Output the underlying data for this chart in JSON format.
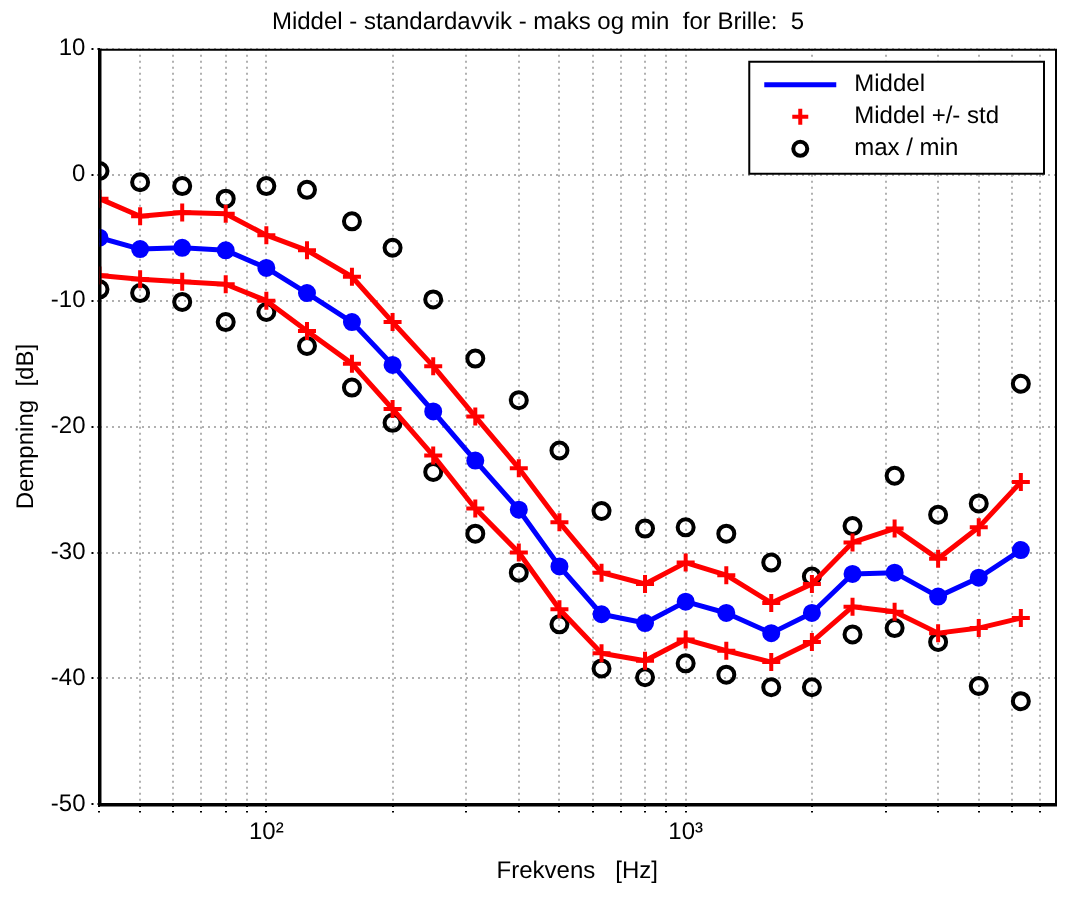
{
  "chart_data": {
    "type": "line",
    "title": "Middel - standardavvik - maks og min  for Brille:  5",
    "xlabel": "Frekvens   [Hz]",
    "ylabel": "Dempning  [dB]",
    "x": [
      40,
      50,
      63,
      80,
      100,
      125,
      160,
      200,
      250,
      315,
      400,
      500,
      630,
      800,
      1000,
      1250,
      1600,
      2000,
      2500,
      3150,
      4000,
      5000,
      6300
    ],
    "series": [
      {
        "name": "Middel",
        "color": "#0000ff",
        "marker": "circle",
        "values": [
          -5.0,
          -5.9,
          -5.8,
          -6.0,
          -7.4,
          -9.4,
          -11.7,
          -15.1,
          -18.8,
          -22.7,
          -26.6,
          -31.1,
          -34.9,
          -35.6,
          -33.9,
          -34.8,
          -36.4,
          -34.8,
          -31.7,
          -31.6,
          -33.5,
          -32.0,
          -29.8
        ]
      },
      {
        "name": "Middel +/- std",
        "color": "#ff0000",
        "marker": "cross",
        "values": [
          -1.9,
          -3.3,
          -3.0,
          -3.1,
          -4.8,
          -6.0,
          -8.1,
          -11.7,
          -15.2,
          -19.2,
          -23.3,
          -27.6,
          -31.6,
          -32.5,
          -30.8,
          -31.8,
          -34.0,
          -32.5,
          -29.2,
          -28.1,
          -30.5,
          -28.0,
          -24.4
        ]
      },
      {
        "color": "#ff0000",
        "marker": "cross",
        "values": [
          -8.0,
          -8.3,
          -8.5,
          -8.7,
          -10.0,
          -12.4,
          -15.0,
          -18.6,
          -22.3,
          -26.5,
          -30.0,
          -34.5,
          -38.0,
          -38.6,
          -36.9,
          -37.8,
          -38.7,
          -37.1,
          -34.3,
          -34.7,
          -36.4,
          -36.0,
          -35.2
        ]
      },
      {
        "name": "max / min",
        "type": "scatter",
        "color": "#000000",
        "marker": "circle",
        "values": [
          0.3,
          -0.6,
          -0.9,
          -1.9,
          -0.9,
          -1.2,
          -3.7,
          -5.8,
          -9.9,
          -14.6,
          -17.9,
          -21.9,
          -26.7,
          -28.1,
          -28.0,
          -28.5,
          -30.8,
          -31.9,
          -27.9,
          -23.9,
          -27.0,
          -26.1,
          -16.6
        ]
      },
      {
        "type": "scatter",
        "color": "#000000",
        "marker": "circle",
        "values": [
          -9.1,
          -9.4,
          -10.1,
          -11.7,
          -10.9,
          -13.6,
          -16.9,
          -19.7,
          -23.6,
          -28.5,
          -31.6,
          -35.7,
          -39.2,
          -39.9,
          -38.8,
          -39.7,
          -40.7,
          -40.7,
          -36.5,
          -36.0,
          -37.1,
          -40.6,
          -41.8
        ]
      }
    ],
    "log": "x",
    "xlim": [
      40,
      7600
    ],
    "xticks": [
      {
        "value": 40,
        "label": null
      },
      {
        "value": 50,
        "label": null
      },
      {
        "value": 60,
        "label": null
      },
      {
        "value": 70,
        "label": null
      },
      {
        "value": 80,
        "label": null
      },
      {
        "value": 90,
        "label": null
      },
      {
        "value": 100,
        "label": "10²"
      },
      {
        "value": 200,
        "label": null
      },
      {
        "value": 300,
        "label": null
      },
      {
        "value": 400,
        "label": null
      },
      {
        "value": 500,
        "label": null
      },
      {
        "value": 600,
        "label": null
      },
      {
        "value": 700,
        "label": null
      },
      {
        "value": 800,
        "label": null
      },
      {
        "value": 900,
        "label": null
      },
      {
        "value": 1000,
        "label": "10³"
      },
      {
        "value": 2000,
        "label": null
      },
      {
        "value": 3000,
        "label": null
      },
      {
        "value": 4000,
        "label": null
      },
      {
        "value": 5000,
        "label": null
      },
      {
        "value": 6000,
        "label": null
      },
      {
        "value": 7000,
        "label": null
      }
    ],
    "ylim": [
      -50,
      10
    ],
    "yticks": [
      -50,
      -40,
      -30,
      -20,
      -10,
      0,
      10
    ],
    "grid": true,
    "legend": "top right"
  }
}
